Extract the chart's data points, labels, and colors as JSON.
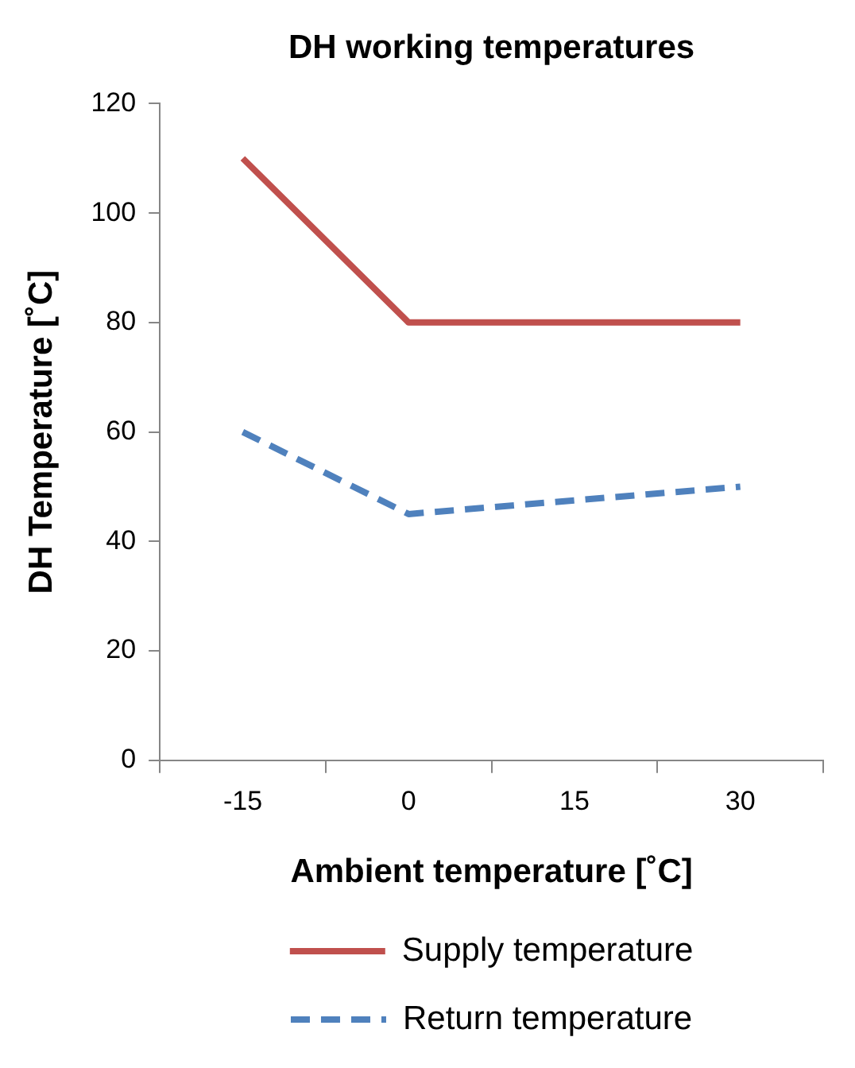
{
  "chart_data": {
    "type": "line",
    "title": "DH working temperatures",
    "xlabel": "Ambient temperature [˚C]",
    "ylabel": "DH Temperature [˚C]",
    "categories": [
      "-15",
      "0",
      "15",
      "30"
    ],
    "series": [
      {
        "name": "Supply temperature",
        "color": "#c0504d",
        "values": [
          110,
          80,
          80,
          80
        ],
        "line_style": "solid"
      },
      {
        "name": "Return temperature",
        "color": "#4f81bd",
        "values": [
          60,
          45,
          47.5,
          50
        ],
        "line_style": "dashed"
      }
    ],
    "ylim": [
      0,
      120
    ],
    "yticks": [
      0,
      20,
      40,
      60,
      80,
      100,
      120
    ],
    "grid": false,
    "legend": "bottom",
    "marker": "none"
  }
}
